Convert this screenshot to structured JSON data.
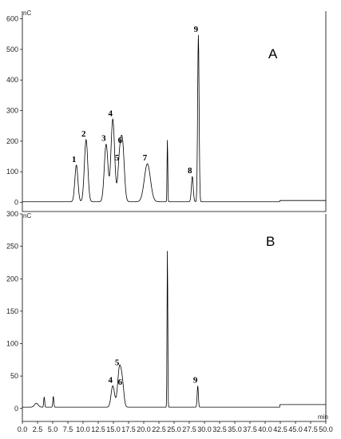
{
  "chart_data": [
    {
      "type": "line",
      "panel_label": "A",
      "unit_label": "nC",
      "xlim": [
        0,
        50
      ],
      "ylim": [
        -30,
        625
      ],
      "y_ticks": [
        0,
        100,
        200,
        300,
        400,
        500,
        600
      ],
      "baseline": 2,
      "peaks": [
        {
          "label": "1",
          "x": 8.9,
          "height": 120,
          "width": 0.25
        },
        {
          "label": "2",
          "x": 10.5,
          "height": 203,
          "width": 0.28
        },
        {
          "label": "3",
          "x": 13.8,
          "height": 188,
          "width": 0.3
        },
        {
          "label": "4",
          "x": 14.9,
          "height": 270,
          "width": 0.3
        },
        {
          "label": "5",
          "x": 16.0,
          "height": 125,
          "width": 0.28
        },
        {
          "label": "6",
          "x": 16.5,
          "height": 182,
          "width": 0.3
        },
        {
          "label": "7",
          "x": 20.6,
          "height": 124,
          "width": 0.5
        },
        {
          "label": "",
          "x": 23.9,
          "height": 205,
          "width": 0.06
        },
        {
          "label": "8",
          "x": 28.0,
          "height": 83,
          "width": 0.15
        },
        {
          "label": "9",
          "x": 29.0,
          "height": 545,
          "width": 0.12
        }
      ]
    },
    {
      "type": "line",
      "panel_label": "B",
      "unit_label": "nC",
      "x_axis_label": "min",
      "xlim": [
        0,
        50
      ],
      "ylim": [
        -20,
        300
      ],
      "x_ticks": [
        "0.0",
        "2.5",
        "5.0",
        "7.5",
        "10.0",
        "12.5",
        "15.0",
        "17.5",
        "20.0",
        "22.5",
        "25.0",
        "27.5",
        "30.0",
        "32.5",
        "35.0",
        "37.5",
        "40.0",
        "42.5",
        "45.0",
        "47.5",
        "50.0"
      ],
      "y_ticks": [
        0,
        50,
        100,
        150,
        200,
        250,
        300
      ],
      "baseline": 2,
      "peaks": [
        {
          "label": "",
          "x": 2.3,
          "height": 6,
          "width": 0.3
        },
        {
          "label": "",
          "x": 3.6,
          "height": 16,
          "width": 0.08
        },
        {
          "label": "",
          "x": 5.1,
          "height": 17,
          "width": 0.08
        },
        {
          "label": "4",
          "x": 14.9,
          "height": 33,
          "width": 0.28
        },
        {
          "label": "5",
          "x": 16.0,
          "height": 60,
          "width": 0.3
        },
        {
          "label": "6",
          "x": 16.5,
          "height": 30,
          "width": 0.25
        },
        {
          "label": "",
          "x": 23.9,
          "height": 245,
          "width": 0.06
        },
        {
          "label": "9",
          "x": 28.9,
          "height": 33,
          "width": 0.1
        }
      ]
    }
  ]
}
